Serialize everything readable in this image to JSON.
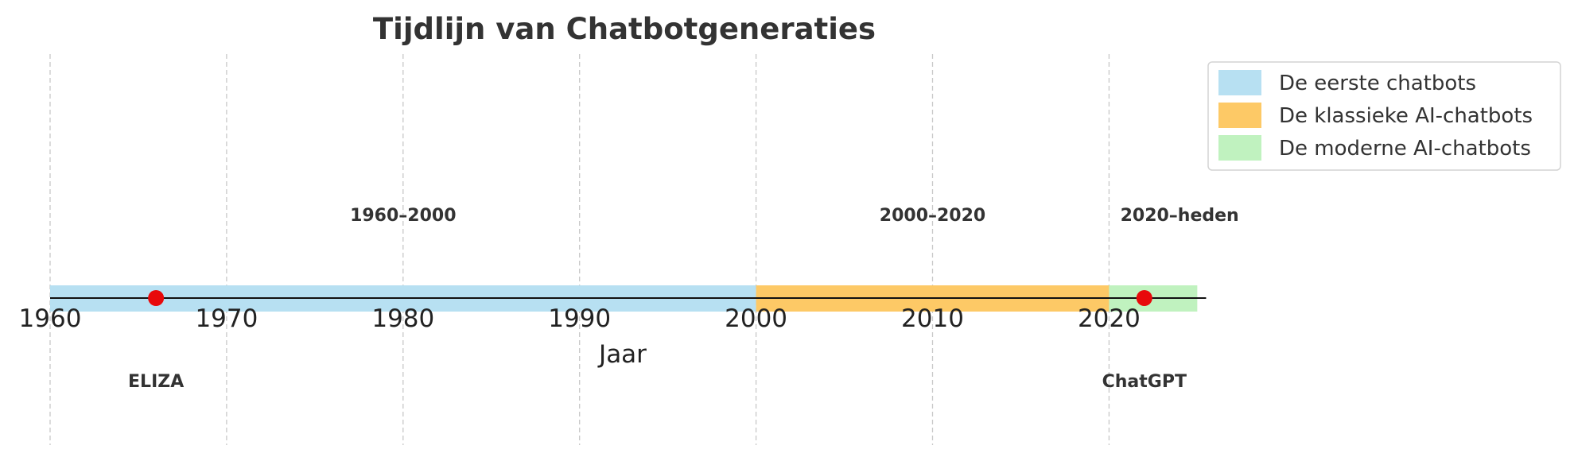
{
  "chart_data": {
    "type": "timeline",
    "title": "Tijdlijn van Chatbotgeneraties",
    "xlabel": "Jaar",
    "xlim": [
      1960,
      2026
    ],
    "xticks": [
      1960,
      1970,
      1980,
      1990,
      2000,
      2010,
      2020
    ],
    "grid": true,
    "legend_position": "top-right",
    "periods": [
      {
        "name": "De eerste chatbots",
        "start": 1960,
        "end": 2000,
        "label": "1960–2000",
        "label_at": 1980,
        "color": "#b7e0f2"
      },
      {
        "name": "De klassieke AI-chatbots",
        "start": 2000,
        "end": 2020,
        "label": "2000–2020",
        "label_at": 2010,
        "color": "#fdc966"
      },
      {
        "name": "De moderne AI-chatbots",
        "start": 2020,
        "end": 2025,
        "label": "2020–heden",
        "label_at": 2024,
        "color": "#c0f2bf"
      }
    ],
    "events": [
      {
        "name": "ELIZA",
        "year": 1966,
        "color": "#e8090b"
      },
      {
        "name": "ChatGPT",
        "year": 2022,
        "color": "#e8090b"
      }
    ]
  }
}
